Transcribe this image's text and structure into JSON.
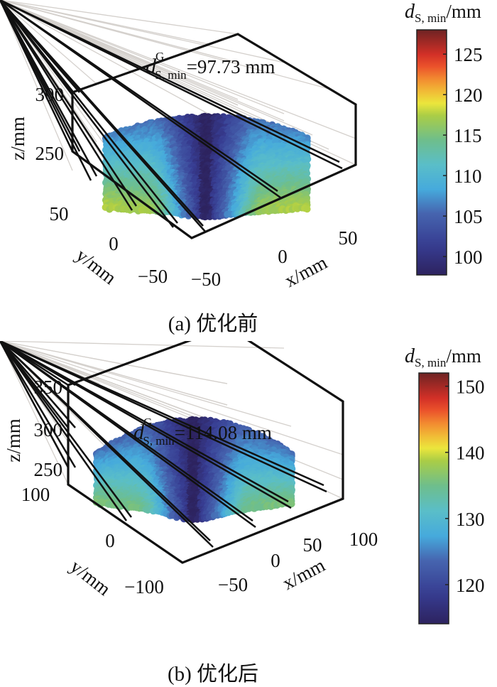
{
  "chart_data": [
    {
      "type": "scatter3d",
      "panel": "a",
      "caption": "(a) 优化前",
      "annotation": {
        "symbol": "d",
        "sup": "G",
        "sub": "S, min",
        "value_text": "=97.73 mm"
      },
      "xlabel": "x/mm",
      "ylabel": "y/mm",
      "zlabel": "z/mm",
      "x_ticks": [
        "−50",
        "0",
        "50"
      ],
      "y_ticks": [
        "50",
        "0",
        "−50"
      ],
      "z_ticks": [
        "300",
        "250"
      ],
      "grid": true,
      "colorbar": {
        "label_symbol": "d",
        "label_sub": "S, min",
        "label_unit": "/mm",
        "range": [
          97.73,
          128
        ],
        "ticks": [
          "100",
          "105",
          "110",
          "115",
          "120",
          "125"
        ],
        "tick_values": [
          100,
          105,
          110,
          115,
          120,
          125
        ],
        "colormap": "turbo-like"
      },
      "surface_description": "curved band of points; minimum (dark blue) along central vertical line, values increasing toward left/right bottom corners (green-yellow)",
      "surface_range": [
        97.73,
        116
      ]
    },
    {
      "type": "scatter3d",
      "panel": "b",
      "caption": "(b) 优化后",
      "annotation": {
        "symbol": "d",
        "sup": "G",
        "sub": "S, min",
        "value_text": "=114.08 mm"
      },
      "xlabel": "x/mm",
      "ylabel": "y/mm",
      "zlabel": "z/mm",
      "x_ticks": [
        "−50",
        "0",
        "50",
        "100"
      ],
      "y_ticks": [
        "100",
        "0",
        "−100"
      ],
      "z_ticks": [
        "350",
        "300",
        "250"
      ],
      "grid": true,
      "colorbar": {
        "label_symbol": "d",
        "label_sub": "S, min",
        "label_unit": "/mm",
        "range": [
          114.08,
          152
        ],
        "ticks": [
          "120",
          "130",
          "140",
          "150"
        ],
        "tick_values": [
          120,
          130,
          140,
          150
        ],
        "colormap": "turbo-like"
      },
      "surface_description": "curved band of points; minimum (dark blue) along central vertical line, values increasing toward lower left/right (green)",
      "surface_range": [
        114.08,
        134
      ]
    }
  ]
}
